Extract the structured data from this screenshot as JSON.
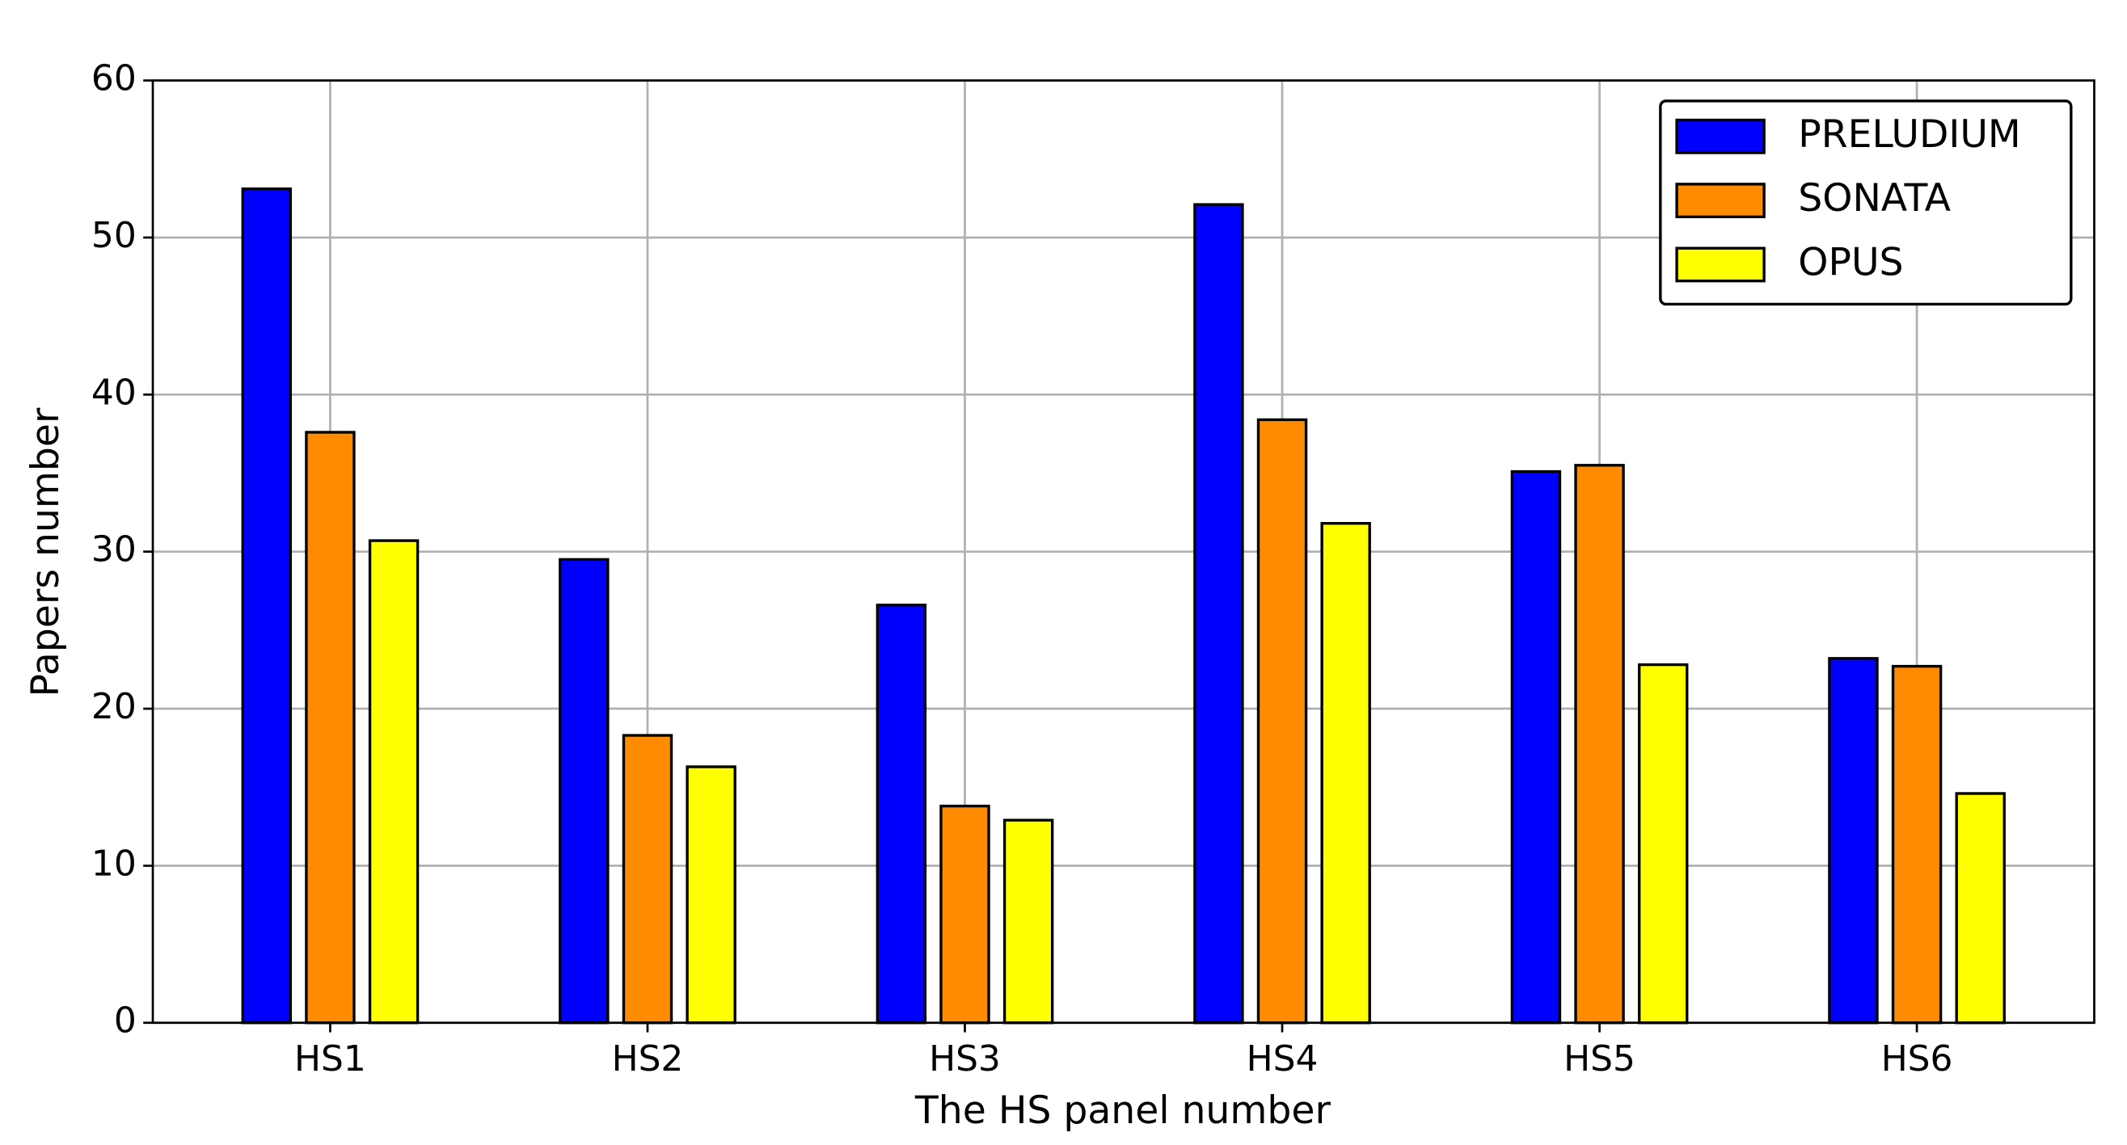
{
  "chart_data": {
    "type": "bar",
    "x_label": "The HS panel number",
    "y_label": "Papers number",
    "categories": [
      "HS1",
      "HS2",
      "HS3",
      "HS4",
      "HS5",
      "HS6"
    ],
    "series": [
      {
        "name": "PRELUDIUM",
        "color": "#0000ff",
        "values": [
          53.1,
          29.5,
          26.6,
          52.1,
          35.1,
          23.2
        ]
      },
      {
        "name": "SONATA",
        "color": "#ff8c00",
        "values": [
          37.6,
          18.3,
          13.8,
          38.4,
          35.5,
          22.7
        ]
      },
      {
        "name": "OPUS",
        "color": "#ffff00",
        "values": [
          30.7,
          16.3,
          12.9,
          31.8,
          22.8,
          14.6
        ]
      }
    ],
    "ylim": [
      0,
      60
    ],
    "yticks": [
      0,
      10,
      20,
      30,
      40,
      50,
      60
    ],
    "grid": true,
    "legend": "upper right"
  }
}
